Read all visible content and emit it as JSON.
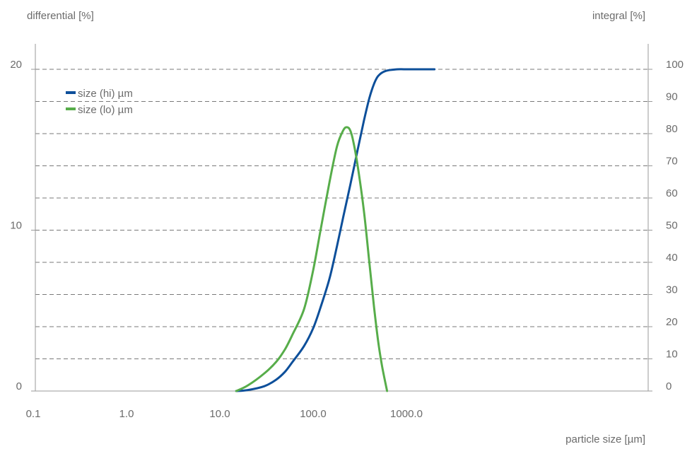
{
  "chart_data": {
    "type": "line",
    "title": "",
    "xlabel": "particle size [µm]",
    "ylabel_left": "differential [%]",
    "ylabel_right": "integral [%]",
    "x_scale": "log",
    "xlim": [
      0.1,
      2000
    ],
    "x_ticks": [
      0.1,
      1.0,
      10.0,
      100.0,
      1000.0
    ],
    "x_tick_labels": [
      "0.1",
      "1.0",
      "10.0",
      "100.0",
      "1000.0"
    ],
    "ylim_left": [
      0,
      20
    ],
    "y_ticks_left": [
      0,
      10,
      20
    ],
    "y_tick_labels_left": [
      "0",
      "10",
      "20"
    ],
    "ylim_right": [
      0,
      100
    ],
    "y_ticks_right": [
      0,
      10,
      20,
      30,
      40,
      50,
      60,
      70,
      80,
      90,
      100
    ],
    "y_tick_labels_right": [
      "0",
      "10",
      "20",
      "30",
      "40",
      "50",
      "60",
      "70",
      "80",
      "90",
      "100"
    ],
    "grid": "horizontal dashed",
    "legend_position": "top-left",
    "series": [
      {
        "name": "size (hi) µm",
        "axis": "right",
        "color": "#0d4f9a",
        "x": [
          15,
          20,
          30,
          40,
          50,
          60,
          80,
          100,
          120,
          150,
          180,
          210,
          250,
          300,
          350,
          400,
          450,
          500,
          600,
          800,
          1000,
          2000
        ],
        "y": [
          0,
          0.3,
          1.5,
          3.5,
          6,
          9,
          14,
          19.5,
          26,
          35,
          45,
          54,
          64,
          75,
          84,
          91,
          95.5,
          98,
          99.5,
          100,
          100,
          100
        ]
      },
      {
        "name": "size (lo) µm",
        "axis": "left",
        "color": "#57ad4a",
        "x": [
          15,
          20,
          30,
          40,
          50,
          60,
          80,
          100,
          120,
          150,
          180,
          210,
          230,
          250,
          270,
          300,
          350,
          400,
          450,
          500,
          550,
          620
        ],
        "y": [
          0,
          0.35,
          1.1,
          1.8,
          2.6,
          3.5,
          5.1,
          7.5,
          10,
          13,
          15.2,
          16.2,
          16.4,
          16.2,
          15.5,
          14,
          11.2,
          8,
          5.2,
          3,
          1.5,
          0
        ]
      }
    ]
  }
}
